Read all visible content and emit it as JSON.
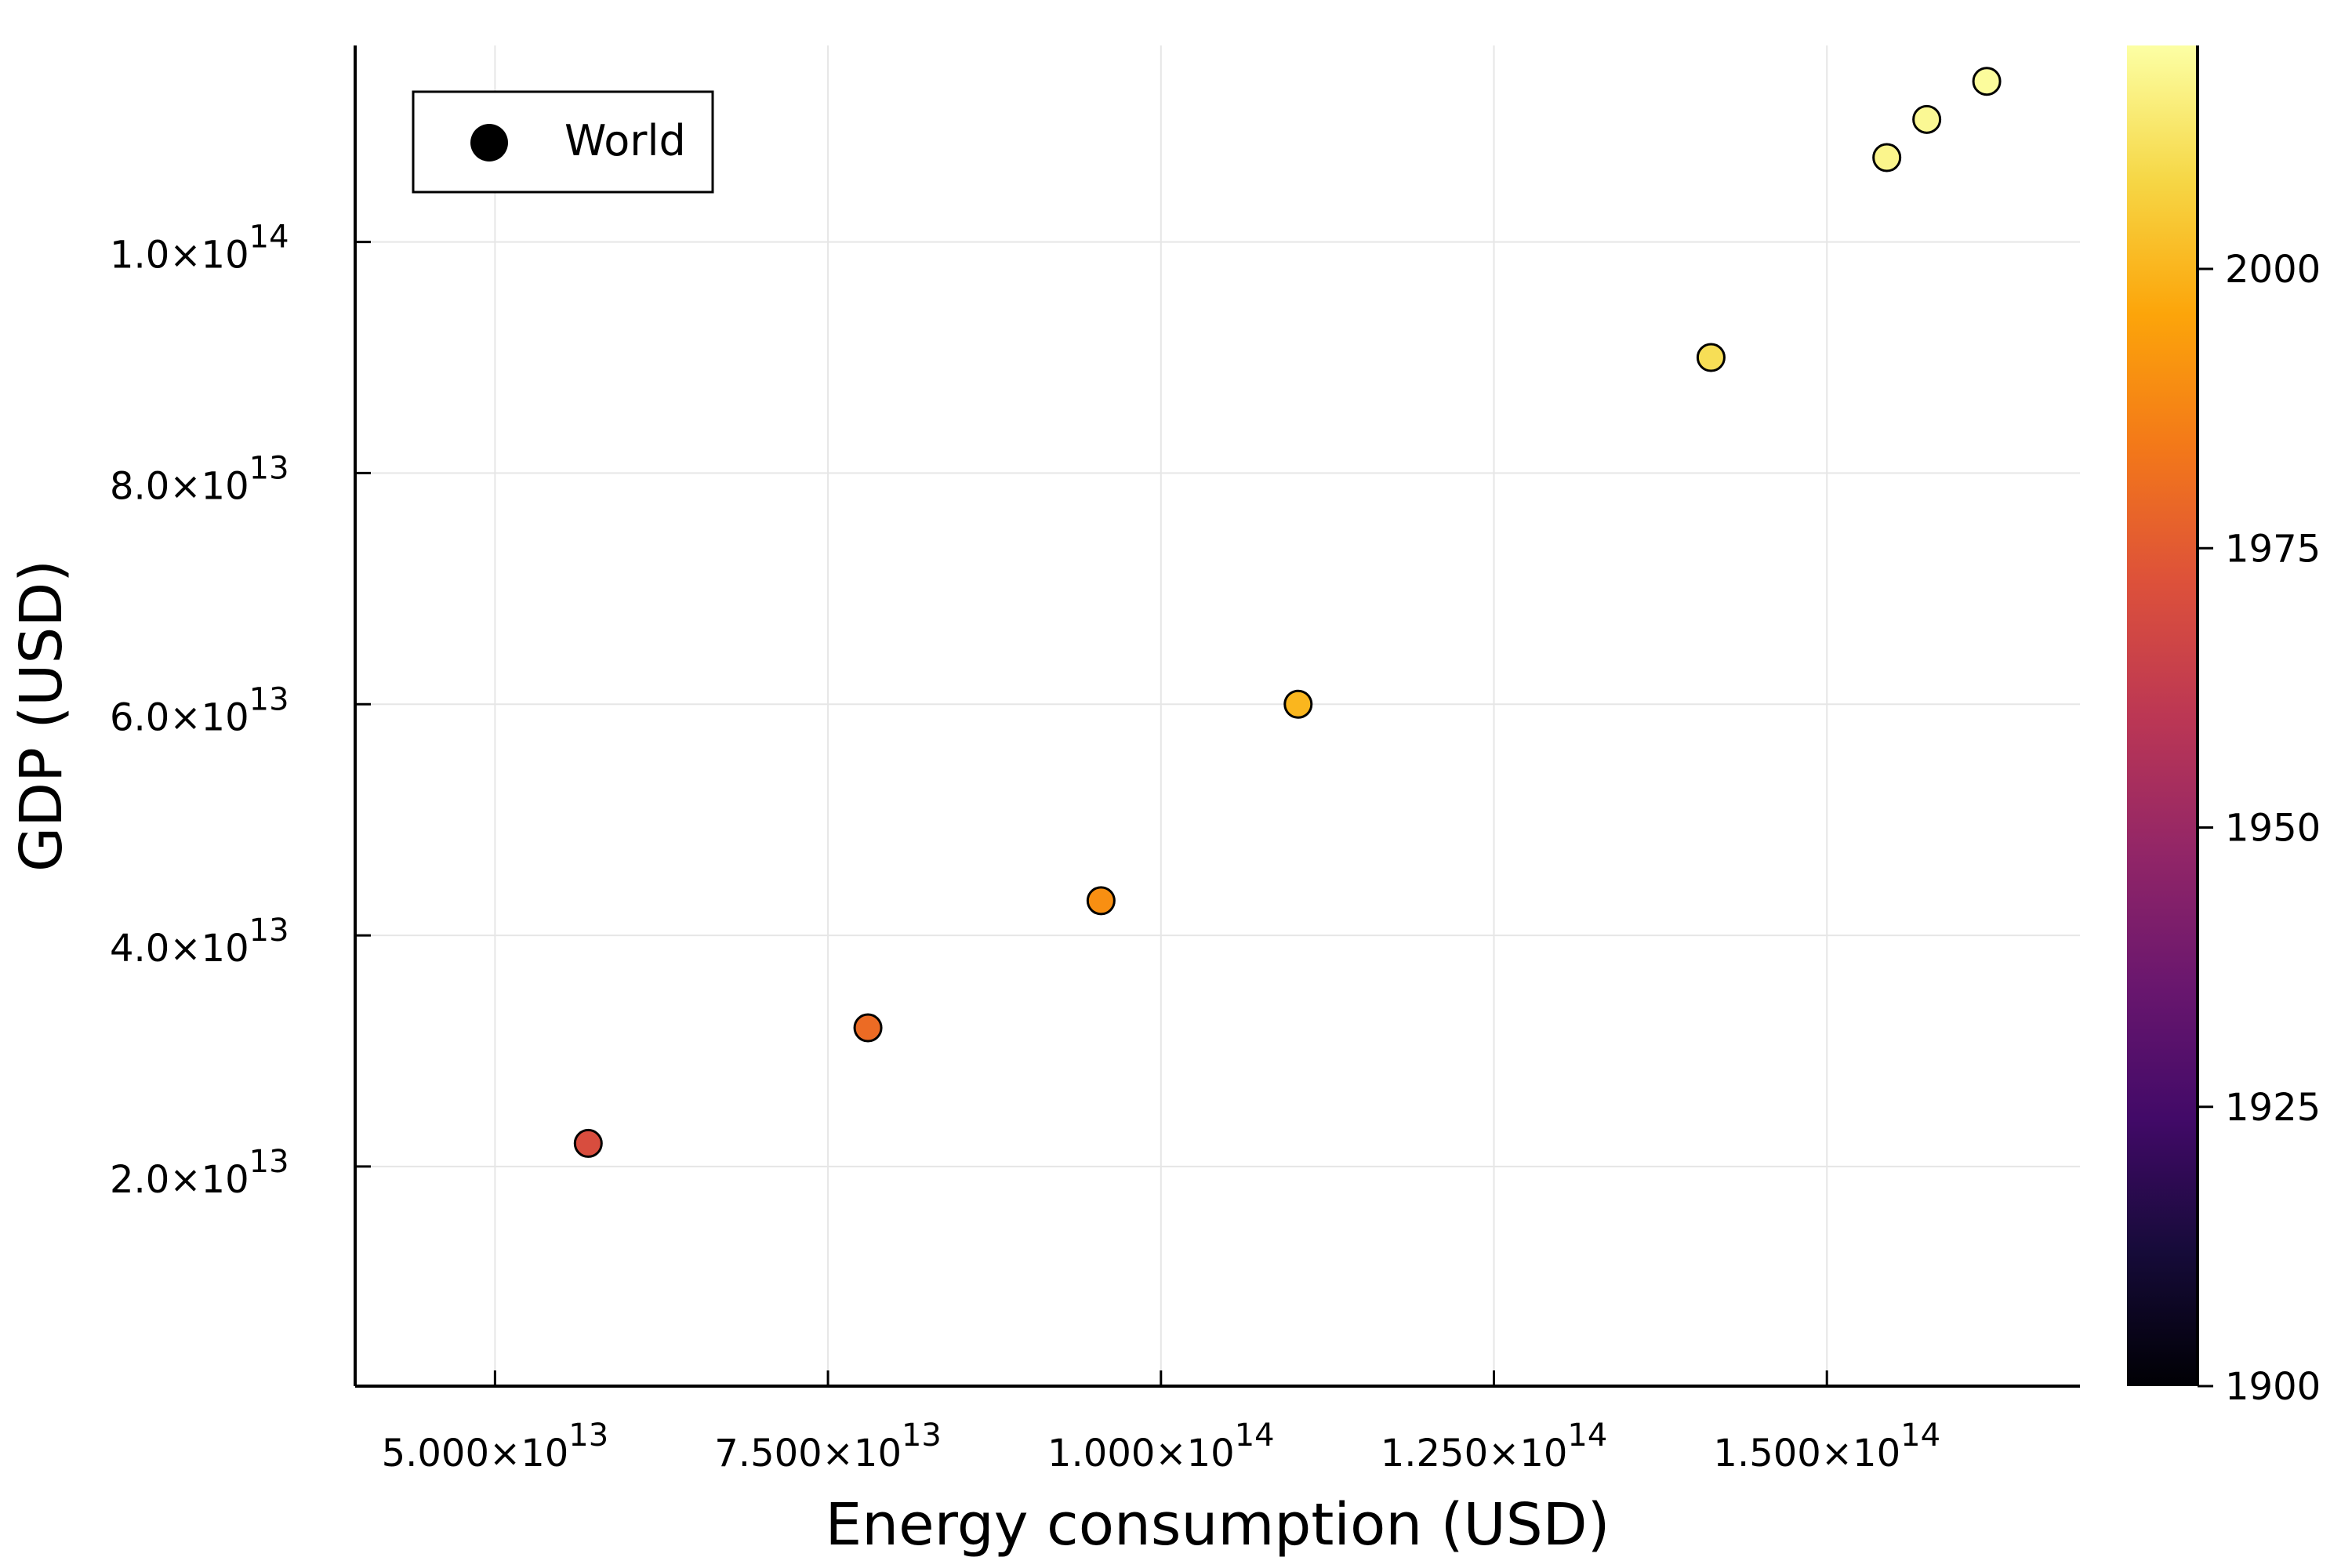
{
  "chart_data": {
    "type": "scatter",
    "xlabel": "Energy consumption (USD)",
    "ylabel": "GDP (USD)",
    "xlim": [
      39500000000000.0,
      169000000000000.0
    ],
    "ylim": [
      1000000000000.0,
      117000000000000.0
    ],
    "x_ticks": [
      {
        "value": 50000000000000.0,
        "mantissa": "5.000",
        "exp": "13"
      },
      {
        "value": 75000000000000.0,
        "mantissa": "7.500",
        "exp": "13"
      },
      {
        "value": 100000000000000.0,
        "mantissa": "1.000",
        "exp": "14"
      },
      {
        "value": 125000000000000.0,
        "mantissa": "1.250",
        "exp": "14"
      },
      {
        "value": 150000000000000.0,
        "mantissa": "1.500",
        "exp": "14"
      }
    ],
    "y_ticks": [
      {
        "value": 20000000000000.0,
        "mantissa": "2.0",
        "exp": "13"
      },
      {
        "value": 40000000000000.0,
        "mantissa": "4.0",
        "exp": "13"
      },
      {
        "value": 60000000000000.0,
        "mantissa": "6.0",
        "exp": "13"
      },
      {
        "value": 80000000000000.0,
        "mantissa": "8.0",
        "exp": "13"
      },
      {
        "value": 100000000000000.0,
        "mantissa": "1.0",
        "exp": "14"
      }
    ],
    "grid": true,
    "legend": {
      "position": "top-left",
      "entries": [
        "World"
      ]
    },
    "colorbar": {
      "colormap": "inferno",
      "range": [
        1900,
        2020
      ],
      "ticks": [
        1900,
        1925,
        1950,
        1975,
        2000
      ]
    },
    "series": [
      {
        "name": "World",
        "points": [
          {
            "x": 57000000000000.0,
            "y": 22000000000000.0,
            "year": 1970
          },
          {
            "x": 78000000000000.0,
            "y": 32000000000000.0,
            "year": 1980
          },
          {
            "x": 95500000000000.0,
            "y": 43000000000000.0,
            "year": 1990
          },
          {
            "x": 110300000000000.0,
            "y": 60000000000000.0,
            "year": 2000
          },
          {
            "x": 141300000000000.0,
            "y": 90000000000000.0,
            "year": 2010
          },
          {
            "x": 154500000000000.0,
            "y": 107300000000000.0,
            "year": 2017
          },
          {
            "x": 157500000000000.0,
            "y": 110600000000000.0,
            "year": 2018
          },
          {
            "x": 162000000000000.0,
            "y": 113900000000000.0,
            "year": 2019
          }
        ]
      }
    ]
  }
}
